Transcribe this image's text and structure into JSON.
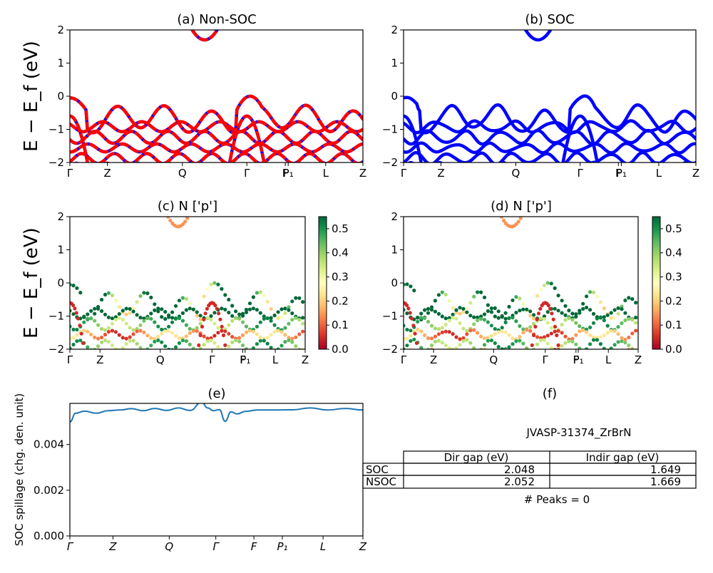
{
  "chart_data": [
    {
      "type": "line",
      "title": "(a) Non-SOC",
      "ylabel": "E − E_f (eV)",
      "ylim": [
        -2,
        2
      ],
      "yticks": [
        "2",
        "1",
        "0",
        "−1",
        "−2"
      ],
      "kpath_labels": [
        "Γ",
        "Z",
        "Q",
        "Γ",
        "F",
        "P₁",
        "L",
        "Z"
      ],
      "kpath_positions": [
        0,
        0.128,
        0.384,
        0.604,
        0.735,
        0.745,
        0.873,
        1.0
      ],
      "series": [
        {
          "color": "#ff0000",
          "style": "spin-up/down overlaid (red solid over blue)"
        }
      ],
      "bands": {
        "conduction_min": 1.7,
        "conduction_min_k": 0.46,
        "valence_top": 0.0,
        "valence_top_k": [
          0.0,
          0.61
        ]
      }
    },
    {
      "type": "line",
      "title": "(b) SOC",
      "ylim": [
        -2,
        2
      ],
      "yticks": [
        "2",
        "1",
        "0",
        "−1",
        "−2"
      ],
      "kpath_labels": [
        "Γ",
        "Z",
        "Q",
        "Γ",
        "F",
        "P₁",
        "L",
        "Z"
      ],
      "kpath_positions": [
        0,
        0.128,
        0.384,
        0.604,
        0.735,
        0.745,
        0.873,
        1.0
      ],
      "series": [
        {
          "color": "#0000ff"
        }
      ],
      "bands": {
        "conduction_min": 1.7,
        "conduction_min_k": 0.46,
        "valence_top": 0.0,
        "valence_top_k": [
          0.0,
          0.61
        ]
      }
    },
    {
      "type": "scatter",
      "title": "(c)  N ['p']",
      "ylabel": "E − E_f (eV)",
      "ylim": [
        -2,
        2
      ],
      "yticks": [
        "2",
        "1",
        "0",
        "−1",
        "−2"
      ],
      "kpath_labels": [
        "Γ",
        "Z",
        "Q",
        "Γ",
        "F",
        "P₁",
        "L",
        "Z"
      ],
      "kpath_positions": [
        0,
        0.128,
        0.384,
        0.604,
        0.735,
        0.745,
        0.873,
        1.0
      ],
      "colorbar": {
        "range": [
          0.0,
          0.55
        ],
        "ticks": [
          "0.5",
          "0.4",
          "0.3",
          "0.2",
          "0.1",
          "0.0"
        ],
        "colormap": "RdYlGn"
      }
    },
    {
      "type": "scatter",
      "title": "(d) N ['p']",
      "ylim": [
        -2,
        2
      ],
      "yticks": [
        "2",
        "1",
        "0",
        "−1",
        "−2"
      ],
      "kpath_labels": [
        "Γ",
        "Z",
        "Q",
        "Γ",
        "F",
        "P₁",
        "L",
        "Z"
      ],
      "kpath_positions": [
        0,
        0.128,
        0.384,
        0.604,
        0.735,
        0.745,
        0.873,
        1.0
      ],
      "colorbar": {
        "range": [
          0.0,
          0.55
        ],
        "ticks": [
          "0.5",
          "0.4",
          "0.3",
          "0.2",
          "0.1",
          "0.0"
        ],
        "colormap": "RdYlGn"
      }
    },
    {
      "type": "line",
      "title": "(e)",
      "ylabel": "SOC spillage (chg. den. unit)",
      "ylim": [
        0,
        0.0058
      ],
      "yticks": [
        "0.000",
        "0.002",
        "0.004"
      ],
      "kpath_labels": [
        "Γ",
        "Z",
        "Q",
        "Γ",
        "F",
        "P₁",
        "L",
        "Z"
      ],
      "kpath_positions": [
        0,
        0.147,
        0.339,
        0.498,
        0.628,
        0.725,
        0.864,
        1.0
      ],
      "x": [
        0,
        0.02,
        0.05,
        0.09,
        0.13,
        0.17,
        0.21,
        0.25,
        0.29,
        0.33,
        0.37,
        0.41,
        0.45,
        0.47,
        0.49,
        0.51,
        0.53,
        0.55,
        0.57,
        0.6,
        0.64,
        0.7,
        0.76,
        0.82,
        0.88,
        0.94,
        1.0
      ],
      "values": [
        0.00499,
        0.00537,
        0.00546,
        0.00537,
        0.00548,
        0.00551,
        0.00557,
        0.00548,
        0.00558,
        0.00549,
        0.0056,
        0.00549,
        0.00585,
        0.0056,
        0.00548,
        0.00553,
        0.00502,
        0.00543,
        0.00534,
        0.00545,
        0.00551,
        0.00551,
        0.00552,
        0.0056,
        0.00551,
        0.00558,
        0.00551
      ],
      "series": [
        {
          "color": "#1f77b4"
        }
      ]
    }
  ],
  "panel_f": {
    "title": "(f)",
    "material": "JVASP-31374_ZrBrN",
    "table": {
      "headers": [
        "",
        "Dir gap (eV)",
        "Indir gap (eV)"
      ],
      "rows": [
        [
          "SOC",
          "2.048",
          "1.649"
        ],
        [
          "NSOC",
          "2.052",
          "1.669"
        ]
      ]
    },
    "peaks": "# Peaks = 0"
  }
}
